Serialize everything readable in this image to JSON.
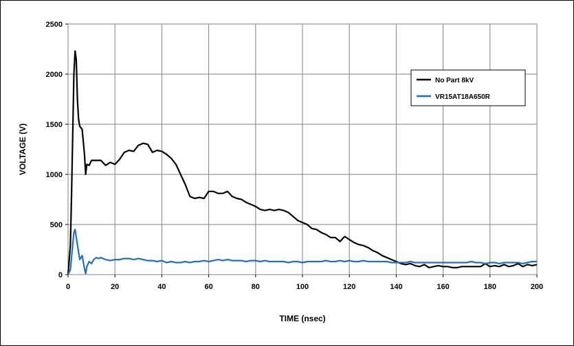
{
  "chart_data": {
    "type": "line",
    "title": "",
    "xlabel": "TIME (nsec)",
    "ylabel": "VOLTAGE (V)",
    "xlim": [
      0,
      200
    ],
    "ylim": [
      0,
      2500
    ],
    "xticks": [
      0,
      20,
      40,
      60,
      80,
      100,
      120,
      140,
      160,
      180,
      200
    ],
    "yticks": [
      0,
      500,
      1000,
      1500,
      2000,
      2500
    ],
    "grid": true,
    "legend_position": "top-right",
    "series": [
      {
        "name": "No Part 8kV",
        "color": "#000000",
        "points": [
          [
            0,
            0
          ],
          [
            1,
            300
          ],
          [
            1.5,
            800
          ],
          [
            2,
            1400
          ],
          [
            2.5,
            2000
          ],
          [
            3,
            2230
          ],
          [
            3.5,
            2150
          ],
          [
            4,
            1750
          ],
          [
            4.5,
            1550
          ],
          [
            5,
            1480
          ],
          [
            6,
            1450
          ],
          [
            7,
            1200
          ],
          [
            7.5,
            1000
          ],
          [
            8,
            1100
          ],
          [
            9,
            1090
          ],
          [
            10,
            1140
          ],
          [
            12,
            1140
          ],
          [
            14,
            1140
          ],
          [
            16,
            1090
          ],
          [
            18,
            1120
          ],
          [
            20,
            1100
          ],
          [
            22,
            1150
          ],
          [
            24,
            1220
          ],
          [
            26,
            1240
          ],
          [
            28,
            1230
          ],
          [
            30,
            1290
          ],
          [
            32,
            1310
          ],
          [
            34,
            1300
          ],
          [
            36,
            1220
          ],
          [
            38,
            1240
          ],
          [
            40,
            1230
          ],
          [
            42,
            1200
          ],
          [
            44,
            1160
          ],
          [
            46,
            1100
          ],
          [
            48,
            1000
          ],
          [
            50,
            900
          ],
          [
            52,
            780
          ],
          [
            54,
            760
          ],
          [
            56,
            770
          ],
          [
            58,
            760
          ],
          [
            60,
            830
          ],
          [
            62,
            830
          ],
          [
            64,
            810
          ],
          [
            66,
            810
          ],
          [
            68,
            830
          ],
          [
            70,
            780
          ],
          [
            72,
            760
          ],
          [
            74,
            750
          ],
          [
            76,
            720
          ],
          [
            78,
            700
          ],
          [
            80,
            680
          ],
          [
            82,
            650
          ],
          [
            84,
            640
          ],
          [
            86,
            650
          ],
          [
            88,
            640
          ],
          [
            90,
            650
          ],
          [
            92,
            640
          ],
          [
            94,
            620
          ],
          [
            96,
            580
          ],
          [
            98,
            540
          ],
          [
            100,
            520
          ],
          [
            102,
            500
          ],
          [
            104,
            460
          ],
          [
            106,
            450
          ],
          [
            108,
            420
          ],
          [
            110,
            400
          ],
          [
            112,
            370
          ],
          [
            114,
            370
          ],
          [
            116,
            330
          ],
          [
            118,
            380
          ],
          [
            120,
            350
          ],
          [
            122,
            320
          ],
          [
            124,
            300
          ],
          [
            126,
            290
          ],
          [
            128,
            270
          ],
          [
            130,
            240
          ],
          [
            132,
            220
          ],
          [
            134,
            190
          ],
          [
            136,
            170
          ],
          [
            138,
            150
          ],
          [
            140,
            130
          ],
          [
            142,
            110
          ],
          [
            144,
            100
          ],
          [
            146,
            110
          ],
          [
            148,
            90
          ],
          [
            150,
            80
          ],
          [
            152,
            100
          ],
          [
            154,
            70
          ],
          [
            156,
            80
          ],
          [
            158,
            90
          ],
          [
            160,
            80
          ],
          [
            162,
            80
          ],
          [
            164,
            70
          ],
          [
            166,
            70
          ],
          [
            168,
            80
          ],
          [
            170,
            80
          ],
          [
            172,
            80
          ],
          [
            174,
            80
          ],
          [
            176,
            80
          ],
          [
            178,
            110
          ],
          [
            180,
            80
          ],
          [
            182,
            90
          ],
          [
            184,
            80
          ],
          [
            186,
            100
          ],
          [
            188,
            80
          ],
          [
            190,
            90
          ],
          [
            192,
            110
          ],
          [
            194,
            80
          ],
          [
            196,
            100
          ],
          [
            198,
            90
          ],
          [
            200,
            100
          ]
        ]
      },
      {
        "name": "VR15AT18A650R",
        "color": "#1f6fc0",
        "points": [
          [
            0,
            0
          ],
          [
            1,
            50
          ],
          [
            2,
            300
          ],
          [
            2.5,
            420
          ],
          [
            3,
            450
          ],
          [
            4,
            300
          ],
          [
            5,
            150
          ],
          [
            6,
            190
          ],
          [
            7,
            60
          ],
          [
            7.5,
            10
          ],
          [
            8,
            80
          ],
          [
            9,
            130
          ],
          [
            10,
            110
          ],
          [
            11,
            150
          ],
          [
            12,
            170
          ],
          [
            13,
            160
          ],
          [
            14,
            170
          ],
          [
            16,
            150
          ],
          [
            18,
            140
          ],
          [
            20,
            150
          ],
          [
            22,
            150
          ],
          [
            24,
            160
          ],
          [
            26,
            160
          ],
          [
            28,
            150
          ],
          [
            30,
            160
          ],
          [
            32,
            150
          ],
          [
            34,
            140
          ],
          [
            36,
            140
          ],
          [
            38,
            130
          ],
          [
            40,
            140
          ],
          [
            42,
            120
          ],
          [
            44,
            130
          ],
          [
            46,
            120
          ],
          [
            48,
            120
          ],
          [
            50,
            130
          ],
          [
            52,
            120
          ],
          [
            54,
            130
          ],
          [
            56,
            130
          ],
          [
            58,
            140
          ],
          [
            60,
            130
          ],
          [
            62,
            140
          ],
          [
            64,
            150
          ],
          [
            66,
            140
          ],
          [
            68,
            150
          ],
          [
            70,
            140
          ],
          [
            72,
            140
          ],
          [
            74,
            140
          ],
          [
            76,
            130
          ],
          [
            78,
            140
          ],
          [
            80,
            140
          ],
          [
            82,
            130
          ],
          [
            84,
            140
          ],
          [
            86,
            130
          ],
          [
            88,
            130
          ],
          [
            90,
            130
          ],
          [
            92,
            130
          ],
          [
            94,
            120
          ],
          [
            96,
            130
          ],
          [
            98,
            130
          ],
          [
            100,
            120
          ],
          [
            102,
            130
          ],
          [
            104,
            130
          ],
          [
            106,
            130
          ],
          [
            108,
            130
          ],
          [
            110,
            140
          ],
          [
            112,
            130
          ],
          [
            114,
            130
          ],
          [
            116,
            140
          ],
          [
            118,
            130
          ],
          [
            120,
            140
          ],
          [
            122,
            130
          ],
          [
            124,
            130
          ],
          [
            126,
            140
          ],
          [
            128,
            130
          ],
          [
            130,
            130
          ],
          [
            132,
            130
          ],
          [
            134,
            130
          ],
          [
            136,
            130
          ],
          [
            138,
            120
          ],
          [
            140,
            120
          ],
          [
            142,
            120
          ],
          [
            144,
            120
          ],
          [
            146,
            130
          ],
          [
            148,
            120
          ],
          [
            150,
            120
          ],
          [
            152,
            120
          ],
          [
            154,
            120
          ],
          [
            156,
            120
          ],
          [
            158,
            120
          ],
          [
            160,
            120
          ],
          [
            162,
            120
          ],
          [
            164,
            120
          ],
          [
            166,
            120
          ],
          [
            168,
            120
          ],
          [
            170,
            120
          ],
          [
            172,
            130
          ],
          [
            174,
            120
          ],
          [
            176,
            120
          ],
          [
            178,
            110
          ],
          [
            180,
            120
          ],
          [
            182,
            120
          ],
          [
            184,
            110
          ],
          [
            186,
            120
          ],
          [
            188,
            120
          ],
          [
            190,
            120
          ],
          [
            192,
            120
          ],
          [
            194,
            110
          ],
          [
            196,
            120
          ],
          [
            198,
            130
          ],
          [
            200,
            130
          ]
        ]
      }
    ]
  }
}
